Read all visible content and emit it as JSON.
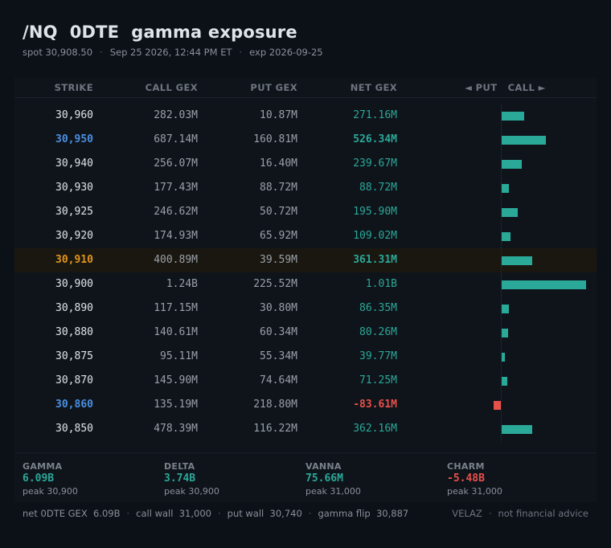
{
  "header": {
    "title": "/NQ  0DTE  gamma exposure",
    "spot": "spot 30,908.50",
    "datetime": "Sep 25 2026, 12:44 PM ET",
    "expiry": "exp 2026-09-25",
    "separator": "·"
  },
  "columns": {
    "strike": "STRIKE",
    "call_gex": "CALL GEX",
    "put_gex": "PUT GEX",
    "net_gex": "NET GEX",
    "put_call": "◄ PUT   CALL ►"
  },
  "rows": [
    {
      "strike": "30,960",
      "call": "282.03M",
      "put": "10.87M",
      "net": "271.16M",
      "net_value": 271.16,
      "style": "normal"
    },
    {
      "strike": "30,950",
      "call": "687.14M",
      "put": "160.81M",
      "net": "526.34M",
      "net_value": 526.34,
      "style": "blue"
    },
    {
      "strike": "30,940",
      "call": "256.07M",
      "put": "16.40M",
      "net": "239.67M",
      "net_value": 239.67,
      "style": "normal"
    },
    {
      "strike": "30,930",
      "call": "177.43M",
      "put": "88.72M",
      "net": "88.72M",
      "net_value": 88.72,
      "style": "normal"
    },
    {
      "strike": "30,925",
      "call": "246.62M",
      "put": "50.72M",
      "net": "195.90M",
      "net_value": 195.9,
      "style": "normal"
    },
    {
      "strike": "30,920",
      "call": "174.93M",
      "put": "65.92M",
      "net": "109.02M",
      "net_value": 109.02,
      "style": "normal"
    },
    {
      "strike": "30,910",
      "call": "400.89M",
      "put": "39.59M",
      "net": "361.31M",
      "net_value": 361.31,
      "style": "orange"
    },
    {
      "strike": "30,900",
      "call": "1.24B",
      "put": "225.52M",
      "net": "1.01B",
      "net_value": 1010,
      "style": "normal"
    },
    {
      "strike": "30,890",
      "call": "117.15M",
      "put": "30.80M",
      "net": "86.35M",
      "net_value": 86.35,
      "style": "normal"
    },
    {
      "strike": "30,880",
      "call": "140.61M",
      "put": "60.34M",
      "net": "80.26M",
      "net_value": 80.26,
      "style": "normal"
    },
    {
      "strike": "30,875",
      "call": "95.11M",
      "put": "55.34M",
      "net": "39.77M",
      "net_value": 39.77,
      "style": "normal"
    },
    {
      "strike": "30,870",
      "call": "145.90M",
      "put": "74.64M",
      "net": "71.25M",
      "net_value": 71.25,
      "style": "normal"
    },
    {
      "strike": "30,860",
      "call": "135.19M",
      "put": "218.80M",
      "net": "-83.61M",
      "net_value": -83.61,
      "style": "blue"
    },
    {
      "strike": "30,850",
      "call": "478.39M",
      "put": "116.22M",
      "net": "362.16M",
      "net_value": 362.16,
      "style": "normal"
    }
  ],
  "stats": [
    {
      "label": "GAMMA",
      "value": "6.09B",
      "peak": "peak 30,900",
      "negative": false
    },
    {
      "label": "DELTA",
      "value": "3.74B",
      "peak": "peak 30,900",
      "negative": false
    },
    {
      "label": "VANNA",
      "value": "75.66M",
      "peak": "peak 31,000",
      "negative": false
    },
    {
      "label": "CHARM",
      "value": "-5.48B",
      "peak": "peak 31,000",
      "negative": true
    }
  ],
  "footer": {
    "net_gex": "net 0DTE GEX  6.09B",
    "call_wall": "call wall  31,000",
    "put_wall": "put wall  30,740",
    "gamma_flip": "gamma flip  30,887",
    "brand": "VELAZ",
    "disclaimer": "not financial advice"
  },
  "colors": {
    "positive": "#2aa898",
    "negative": "#e8504a",
    "highlight_strike": "#e0951e",
    "key_strike": "#4a8fe0"
  }
}
